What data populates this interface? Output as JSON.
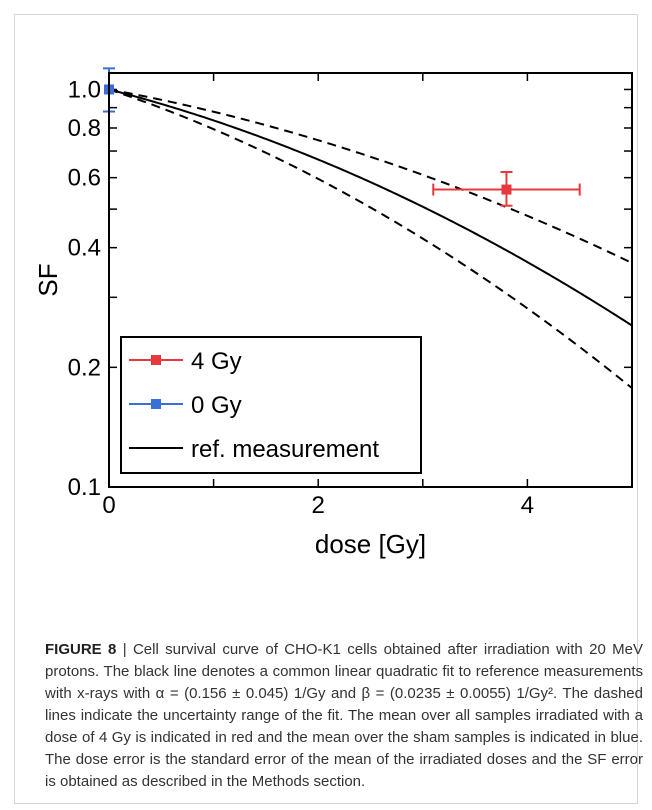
{
  "chart_data": {
    "type": "line",
    "xlabel": "dose [Gy]",
    "ylabel": "SF",
    "xlim": [
      0,
      5
    ],
    "ylim": [
      0.1,
      1.1
    ],
    "yscale": "log",
    "xticks": [
      0,
      2,
      4
    ],
    "xtick_labels": [
      "0",
      "2",
      "4"
    ],
    "yticks": [
      0.1,
      0.2,
      0.4,
      0.6,
      0.8,
      1.0
    ],
    "ytick_labels": [
      "0.1",
      "0.2",
      "0.4",
      "0.6",
      "0.8",
      "1.0"
    ],
    "grid": false,
    "legend_position": "bottom-left",
    "legend": [
      {
        "label": "4 Gy",
        "color": "#e8383d",
        "marker": "square"
      },
      {
        "label": "0 Gy",
        "color": "#3b6fd8",
        "marker": "square"
      },
      {
        "label": "ref. measurement",
        "color": "#000000",
        "marker": "none"
      }
    ],
    "points": [
      {
        "label": "4 Gy",
        "x": 3.8,
        "y": 0.56,
        "x_err": [
          3.1,
          4.5
        ],
        "y_err": [
          0.51,
          0.62
        ],
        "color": "#e8383d"
      },
      {
        "label": "0 Gy",
        "x": 0.0,
        "y": 1.0,
        "y_err": [
          0.88,
          1.13
        ],
        "color": "#3b6fd8"
      }
    ],
    "curves": [
      {
        "label": "ref. measurement",
        "style": "solid",
        "alpha": 0.156,
        "beta": 0.0235,
        "color": "#000000"
      },
      {
        "label": "",
        "style": "dashed",
        "alpha": 0.111,
        "beta": 0.018,
        "color": "#000000"
      },
      {
        "label": "",
        "style": "dashed",
        "alpha": 0.201,
        "beta": 0.029,
        "color": "#000000"
      }
    ]
  },
  "caption": {
    "label": "FIGURE 8",
    "separator": " | ",
    "text": "Cell survival curve of CHO-K1 cells obtained after irradiation with 20 MeV protons. The black line denotes a common linear quadratic fit to reference measurements with x-rays with α = (0.156 ± 0.045) 1/Gy and β = (0.0235 ± 0.0055) 1/Gy². The dashed lines indicate the uncertainty range of the fit. The mean over all samples irradiated with a dose of 4 Gy is indicated in red and the mean over the sham samples is indicated in blue. The dose error is the standard error of the mean of the irradiated doses and the SF error is obtained as described in the Methods section."
  }
}
